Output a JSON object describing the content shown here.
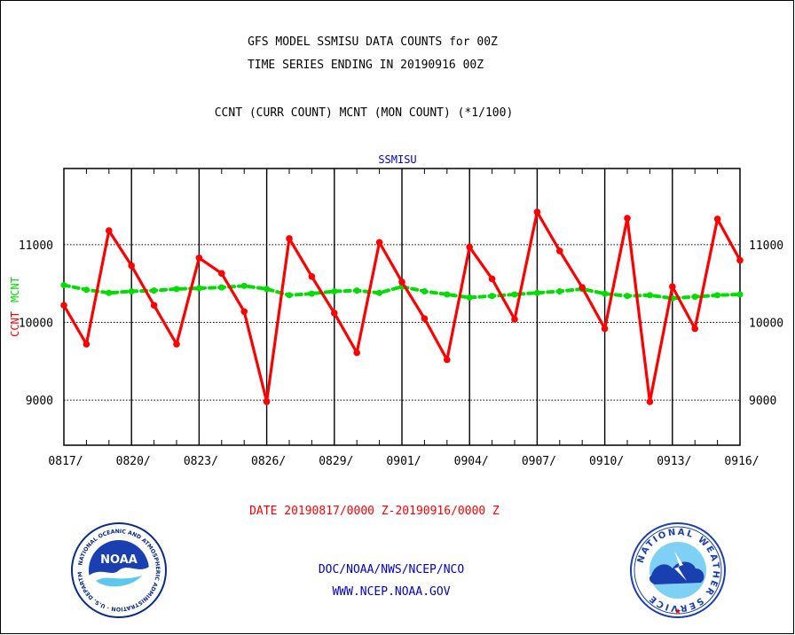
{
  "header": {
    "title_line1": "GFS MODEL SSMISU DATA COUNTS for 00Z",
    "title_line2": "TIME SERIES ENDING IN 20190916 00Z",
    "subtitle": "CCNT (CURR COUNT) MCNT (MON COUNT) (*1/100)"
  },
  "footer": {
    "date_range": "DATE 20190817/0000 Z-20190916/0000 Z",
    "org": "DOC/NOAA/NWS/NCEP/NCO",
    "url": "WWW.NCEP.NOAA.GOV"
  },
  "logos": {
    "left_icon": "noaa-logo-icon",
    "left_text": "NOAA",
    "left_ring_text": "NATIONAL OCEANIC AND ATMOSPHERIC ADMINISTRATION · U.S. DEPARTMENT OF COMMERCE",
    "right_icon": "national-weather-service-logo-icon",
    "right_ring_text": "NATIONAL WEATHER SERVICE"
  },
  "chart_data": {
    "type": "line",
    "title": "SSMISU",
    "ylabel_ccnt": "CCNT",
    "ylabel_mcnt": "MCNT",
    "ylim": [
      8420,
      11980
    ],
    "yticks": [
      9000,
      10000,
      11000
    ],
    "ytick_labels": [
      "9000",
      "10000",
      "11000"
    ],
    "xtick_labels": [
      "0817/",
      "0820/",
      "0823/",
      "0826/",
      "0829/",
      "0901/",
      "0904/",
      "0907/",
      "0910/",
      "0913/",
      "0916/"
    ],
    "grid": true,
    "colors": {
      "ccnt": "#ff0000",
      "mcnt": "#00dd00",
      "title": "#0000cc",
      "axis": "#000000"
    },
    "x": [
      "0817",
      "0818",
      "0819",
      "0820",
      "0821",
      "0822",
      "0823",
      "0824",
      "0825",
      "0826",
      "0827",
      "0828",
      "0829",
      "0830",
      "0831",
      "0901",
      "0902",
      "0903",
      "0904",
      "0905",
      "0906",
      "0907",
      "0908",
      "0909",
      "0910",
      "0911",
      "0912",
      "0913",
      "0914",
      "0915",
      "0916"
    ],
    "series": [
      {
        "key": "ccnt",
        "values": [
          10220,
          9720,
          11180,
          10730,
          10220,
          9720,
          10830,
          10630,
          10140,
          8980,
          11080,
          10590,
          10120,
          9610,
          11030,
          10520,
          10050,
          9520,
          10970,
          10560,
          10040,
          11420,
          10920,
          10450,
          9920,
          11340,
          8980,
          10460,
          9920,
          11330,
          10800
        ]
      },
      {
        "key": "mcnt",
        "values": [
          10480,
          10420,
          10380,
          10400,
          10410,
          10430,
          10440,
          10450,
          10470,
          10430,
          10350,
          10370,
          10400,
          10410,
          10380,
          10460,
          10400,
          10360,
          10320,
          10340,
          10360,
          10380,
          10400,
          10430,
          10370,
          10340,
          10350,
          10310,
          10330,
          10350,
          10360
        ]
      }
    ]
  }
}
